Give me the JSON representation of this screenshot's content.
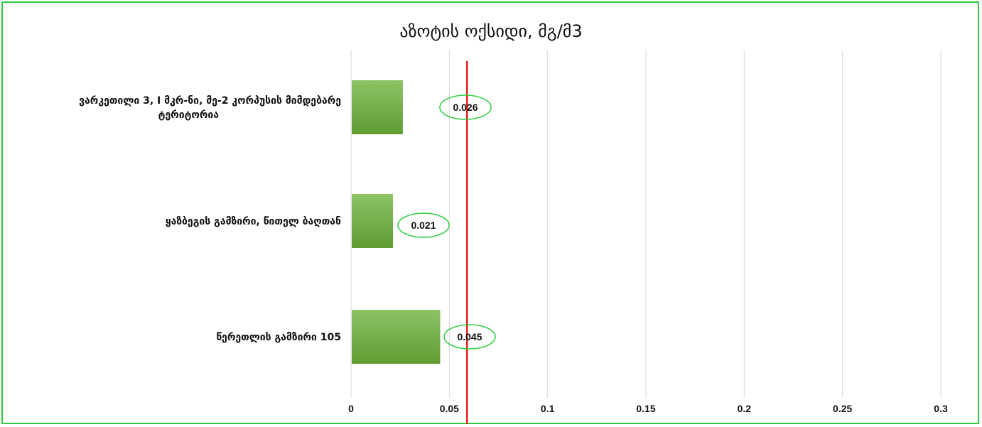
{
  "chart_data": {
    "type": "bar",
    "orientation": "horizontal",
    "title": "აზოტის ოქსიდი, მგ/მ3",
    "xlabel": "",
    "ylabel": "",
    "categories": [
      [
        "ვარკეთილი 3,  I მკრ-ნი, მე-2 კორპუსის მიმდებარე",
        "ტერიტორია"
      ],
      [
        "ყაზბეგის გამზირი, წითელ ბაღთან"
      ],
      [
        "წერეთლის გამზირი 105"
      ]
    ],
    "values": [
      0.026,
      0.021,
      0.045
    ],
    "value_labels": [
      "0.026",
      "0.021",
      "0.045"
    ],
    "xlim": [
      0,
      0.3
    ],
    "x_ticks": [
      "0",
      "0.05",
      "0.1",
      "0.15",
      "0.2",
      "0.25",
      "0.3"
    ],
    "reference_line": {
      "value": 0.059,
      "color": "#e8201a"
    },
    "grid": "vertical",
    "legend": "none",
    "colors": {
      "bar_light": "#8cc365",
      "bar_dark": "#5f9c33",
      "label_ellipse": "#2ecc40",
      "frame": "#2ecc40",
      "gridline": "#d9d9d9"
    }
  }
}
